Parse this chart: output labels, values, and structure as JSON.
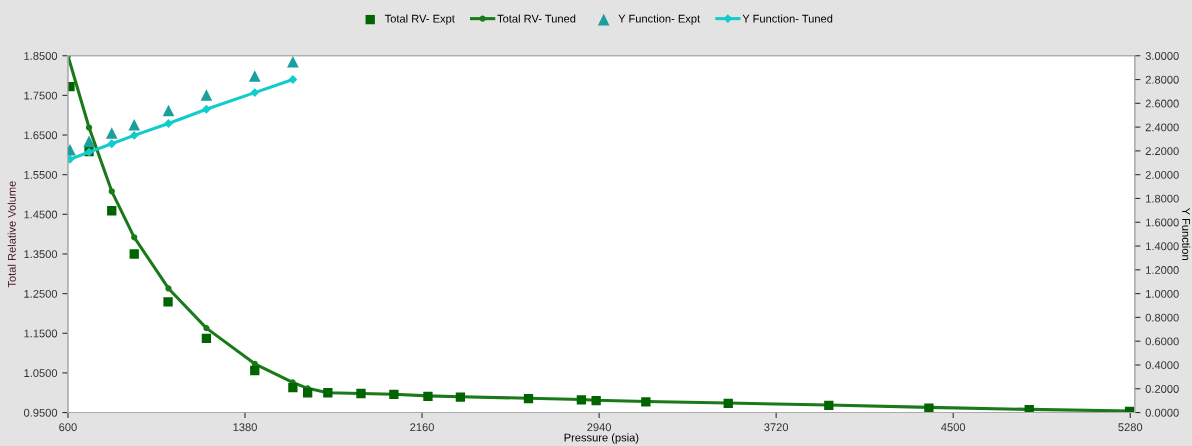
{
  "chart_data": {
    "type": "line",
    "xlabel": "Pressure (psia)",
    "ylabel": "Total Relative Volume",
    "y2label": "Y Function",
    "xlim": [
      600,
      5300
    ],
    "xticks": [
      600,
      1380,
      2160,
      2940,
      3720,
      4500,
      5280
    ],
    "ylim": [
      0.95,
      1.85
    ],
    "yticks": [
      {
        "value": 0.95,
        "label": "0.9500"
      },
      {
        "value": 1.05,
        "label": "1.0500"
      },
      {
        "value": 1.15,
        "label": "1.1500"
      },
      {
        "value": 1.25,
        "label": "1.2500"
      },
      {
        "value": 1.35,
        "label": "1.3500"
      },
      {
        "value": 1.45,
        "label": "1.4500"
      },
      {
        "value": 1.55,
        "label": "1.5500"
      },
      {
        "value": 1.65,
        "label": "1.6500"
      },
      {
        "value": 1.75,
        "label": "1.7500"
      },
      {
        "value": 1.85,
        "label": "1.8500"
      }
    ],
    "y2lim": [
      0,
      3
    ],
    "y2ticks": [
      {
        "value": 0,
        "label": "0.0000"
      },
      {
        "value": 0.2,
        "label": "0.2000"
      },
      {
        "value": 0.4,
        "label": "0.4000"
      },
      {
        "value": 0.6,
        "label": "0.6000"
      },
      {
        "value": 0.8,
        "label": "0.8000"
      },
      {
        "value": 1.0,
        "label": "1.0000"
      },
      {
        "value": 1.2,
        "label": "1.2000"
      },
      {
        "value": 1.4,
        "label": "1.4000"
      },
      {
        "value": 1.6,
        "label": "1.6000"
      },
      {
        "value": 1.8,
        "label": "1.8000"
      },
      {
        "value": 2.0,
        "label": "2.0000"
      },
      {
        "value": 2.2,
        "label": "2.2000"
      },
      {
        "value": 2.4,
        "label": "2.4000"
      },
      {
        "value": 2.6,
        "label": "2.6000"
      },
      {
        "value": 2.8,
        "label": "2.8000"
      },
      {
        "value": 3.0,
        "label": "3.0000"
      }
    ],
    "grid": false,
    "legend": "top",
    "series": [
      {
        "name": "Total RV- Expt",
        "type": "scatter",
        "marker": "square",
        "color": "#006400",
        "x": [
          609,
          693,
          793,
          892,
          1041,
          1210,
          1423,
          1591,
          1656,
          1745,
          1891,
          2036,
          2186,
          2329,
          2629,
          2862,
          2927,
          3146,
          3509,
          3952,
          4393,
          4835,
          5277
        ],
        "values": [
          1.772,
          1.608,
          1.459,
          1.35,
          1.229,
          1.137,
          1.056,
          1.013,
          1.0,
          1.0,
          0.998,
          0.996,
          0.991,
          0.989,
          0.985,
          0.982,
          0.98,
          0.977,
          0.973,
          0.968,
          0.961,
          0.957,
          0.953
        ]
      },
      {
        "name": "Total RV- Tuned",
        "marker": "circle",
        "color": "#1a7a1a",
        "x": [
          600,
          693,
          793,
          892,
          1043,
          1210,
          1423,
          1590,
          1656,
          1745,
          1891,
          2036,
          2186,
          2329,
          2629,
          2862,
          2927,
          3146,
          3509,
          3952,
          4393,
          4835,
          5277
        ],
        "values": [
          1.85,
          1.669,
          1.508,
          1.392,
          1.263,
          1.163,
          1.073,
          1.026,
          1.011,
          1.0,
          0.998,
          0.996,
          0.992,
          0.99,
          0.986,
          0.983,
          0.981,
          0.978,
          0.974,
          0.969,
          0.963,
          0.958,
          0.954
        ]
      },
      {
        "name": "Y Function- Expt",
        "type": "scatter",
        "marker": "triangle",
        "axis": "y2",
        "color": "#1a9e9e",
        "x": [
          609,
          693,
          793,
          892,
          1043,
          1210,
          1423,
          1591
        ],
        "values": [
          2.21,
          2.28,
          2.35,
          2.42,
          2.54,
          2.67,
          2.83,
          2.95
        ]
      },
      {
        "name": "Y Function- Tuned",
        "marker": "diamond",
        "axis": "y2",
        "color": "#11cccc",
        "x": [
          609,
          693,
          793,
          892,
          1043,
          1210,
          1423,
          1591
        ],
        "values": [
          2.13,
          2.19,
          2.26,
          2.33,
          2.43,
          2.55,
          2.69,
          2.8
        ]
      }
    ]
  }
}
